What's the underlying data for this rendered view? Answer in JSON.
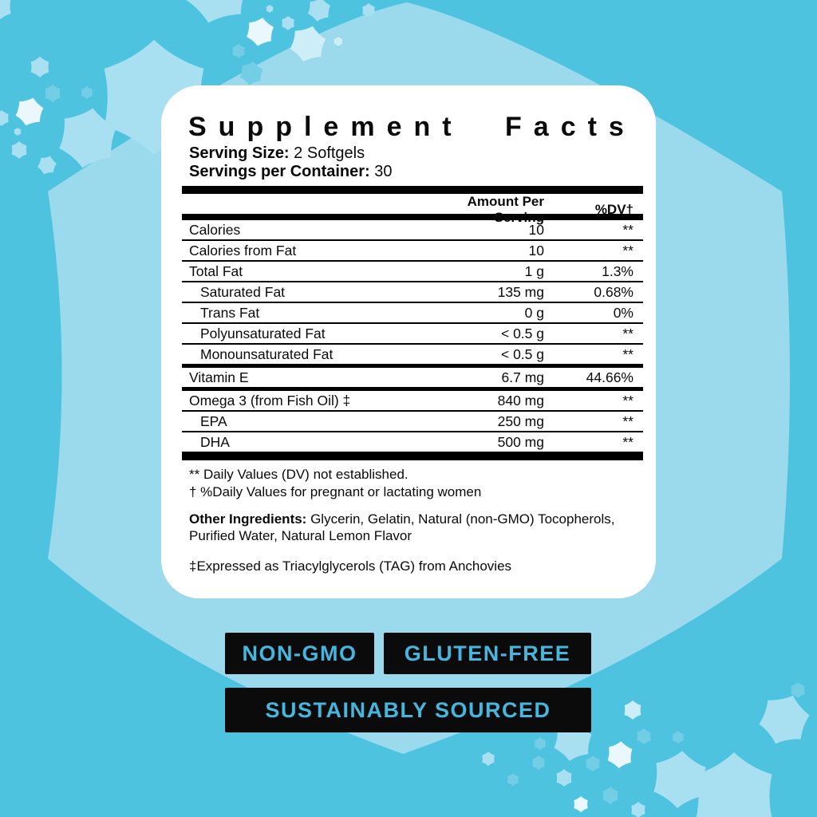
{
  "colors": {
    "background": "#4DC3E0",
    "giant_star": "#9ADAEC",
    "star_light": "#A8E0F1",
    "star_faint": "#73CDE5",
    "star_bright": "#CDEDF7",
    "star_white": "#EAF7FC",
    "card_background": "#FFFFFF",
    "text": "#0A0A0A",
    "badge_background": "#0B0B0B",
    "badge_text": "#45B7DE"
  },
  "panel": {
    "title": "Supplement Facts",
    "serving_size_label": "Serving Size:",
    "serving_size_value": "2 Softgels",
    "servings_label": "Servings per Container:",
    "servings_value": "30",
    "col_amount": "Amount Per Serving",
    "col_dv": "%DV†"
  },
  "table": {
    "rows": [
      {
        "label": "Calories",
        "amount": "10",
        "dv": "**",
        "indent": false,
        "sep": "none"
      },
      {
        "label": "Calories from Fat",
        "amount": "10",
        "dv": "**",
        "indent": false,
        "sep": "thin"
      },
      {
        "label": "Total Fat",
        "amount": "1 g",
        "dv": "1.3%",
        "indent": false,
        "sep": "thin"
      },
      {
        "label": "Saturated Fat",
        "amount": "135 mg",
        "dv": "0.68%",
        "indent": true,
        "sep": "thin"
      },
      {
        "label": "Trans Fat",
        "amount": "0 g",
        "dv": "0%",
        "indent": true,
        "sep": "thin"
      },
      {
        "label": "Polyunsaturated Fat",
        "amount": "< 0.5 g",
        "dv": "**",
        "indent": true,
        "sep": "thin"
      },
      {
        "label": "Monounsaturated Fat",
        "amount": "< 0.5 g",
        "dv": "**",
        "indent": true,
        "sep": "thin"
      },
      {
        "label": "Vitamin E",
        "amount": "6.7 mg",
        "dv": "44.66%",
        "indent": false,
        "sep": "medium"
      },
      {
        "label": "Omega 3 (from Fish Oil) ‡",
        "amount": "840 mg",
        "dv": "**",
        "indent": false,
        "sep": "medium"
      },
      {
        "label": "EPA",
        "amount": "250 mg",
        "dv": "**",
        "indent": true,
        "sep": "thin"
      },
      {
        "label": "DHA",
        "amount": "500 mg",
        "dv": "**",
        "indent": true,
        "sep": "thin"
      }
    ]
  },
  "footnotes": {
    "dv_note": "** Daily Values (DV) not established.",
    "dagger_note": "† %Daily Values for pregnant or lactating women"
  },
  "other_ingredients": {
    "label": "Other Ingredients:",
    "value": " Glycerin, Gelatin, Natural (non-GMO) Tocopherols, Purified Water, Natural Lemon Flavor"
  },
  "tag_note": "‡Expressed as Triacylglycerols (TAG) from Anchovies",
  "badges": {
    "non_gmo": "NON-GMO",
    "gluten_free": "GLUTEN-FREE",
    "sustainably_sourced": "SUSTAINABLY SOURCED"
  }
}
